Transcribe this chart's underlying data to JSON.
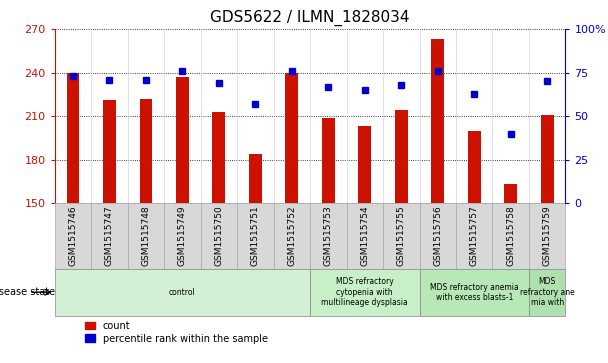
{
  "title": "GDS5622 / ILMN_1828034",
  "samples": [
    "GSM1515746",
    "GSM1515747",
    "GSM1515748",
    "GSM1515749",
    "GSM1515750",
    "GSM1515751",
    "GSM1515752",
    "GSM1515753",
    "GSM1515754",
    "GSM1515755",
    "GSM1515756",
    "GSM1515757",
    "GSM1515758",
    "GSM1515759"
  ],
  "counts": [
    240,
    221,
    222,
    237,
    213,
    184,
    240,
    209,
    203,
    214,
    263,
    200,
    163,
    211
  ],
  "percentile_ranks": [
    73,
    71,
    71,
    76,
    69,
    57,
    76,
    67,
    65,
    68,
    76,
    63,
    40,
    70
  ],
  "ylim_left": [
    150,
    270
  ],
  "ylim_right": [
    0,
    100
  ],
  "yticks_left": [
    150,
    180,
    210,
    240,
    270
  ],
  "yticks_right": [
    0,
    25,
    50,
    75,
    100
  ],
  "bar_color": "#cc1100",
  "dot_color": "#0000cc",
  "background_plot": "#ffffff",
  "disease_groups": [
    {
      "label": "control",
      "start": 0,
      "end": 7,
      "color": "#d4f0d4"
    },
    {
      "label": "MDS refractory\ncytopenia with\nmultilineage dysplasia",
      "start": 7,
      "end": 10,
      "color": "#c8f0c8"
    },
    {
      "label": "MDS refractory anemia\nwith excess blasts-1",
      "start": 10,
      "end": 13,
      "color": "#b8e8b8"
    },
    {
      "label": "MDS\nrefractory ane\nmia with",
      "start": 13,
      "end": 14,
      "color": "#b0e0b0"
    }
  ],
  "bar_width": 0.35,
  "sample_box_color": "#d8d8d8",
  "sample_box_edge": "#aaaaaa"
}
